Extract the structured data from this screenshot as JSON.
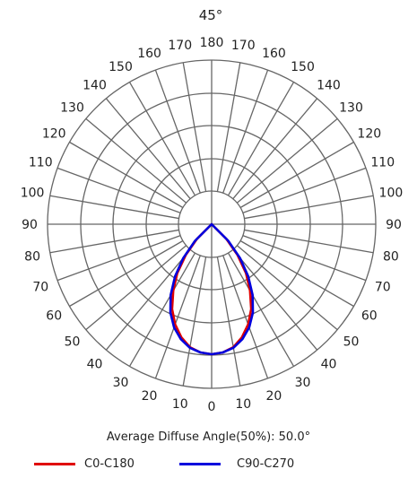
{
  "chart_data": {
    "type": "polar",
    "title": "45°",
    "angle_labels_left": [
      "180",
      "170",
      "160",
      "150",
      "140",
      "130",
      "120",
      "110",
      "100",
      "90",
      "80",
      "70",
      "60",
      "50",
      "40",
      "30",
      "20",
      "10",
      "0"
    ],
    "angle_labels_right": [
      "180",
      "170",
      "160",
      "150",
      "140",
      "130",
      "120",
      "110",
      "100",
      "90",
      "80",
      "70",
      "60",
      "50",
      "40",
      "30",
      "20",
      "10"
    ],
    "zero_label": "0",
    "grid": true,
    "series": [
      {
        "name": "C0-C180",
        "color": "#e00000",
        "angles_deg": [
          0,
          5,
          10,
          15,
          20,
          25,
          30,
          35,
          40,
          45,
          50
        ],
        "relative_intensity": [
          1.0,
          0.99,
          0.96,
          0.9,
          0.82,
          0.72,
          0.59,
          0.46,
          0.31,
          0.16,
          0.0
        ]
      },
      {
        "name": "C90-C270",
        "color": "#0000dd",
        "angles_deg": [
          0,
          5,
          10,
          15,
          20,
          25,
          30,
          35,
          40,
          45,
          50
        ],
        "relative_intensity": [
          1.0,
          0.99,
          0.965,
          0.915,
          0.845,
          0.75,
          0.63,
          0.49,
          0.34,
          0.18,
          0.0
        ]
      }
    ],
    "annotation": "Average Diffuse Angle(50%): 50.0°"
  }
}
